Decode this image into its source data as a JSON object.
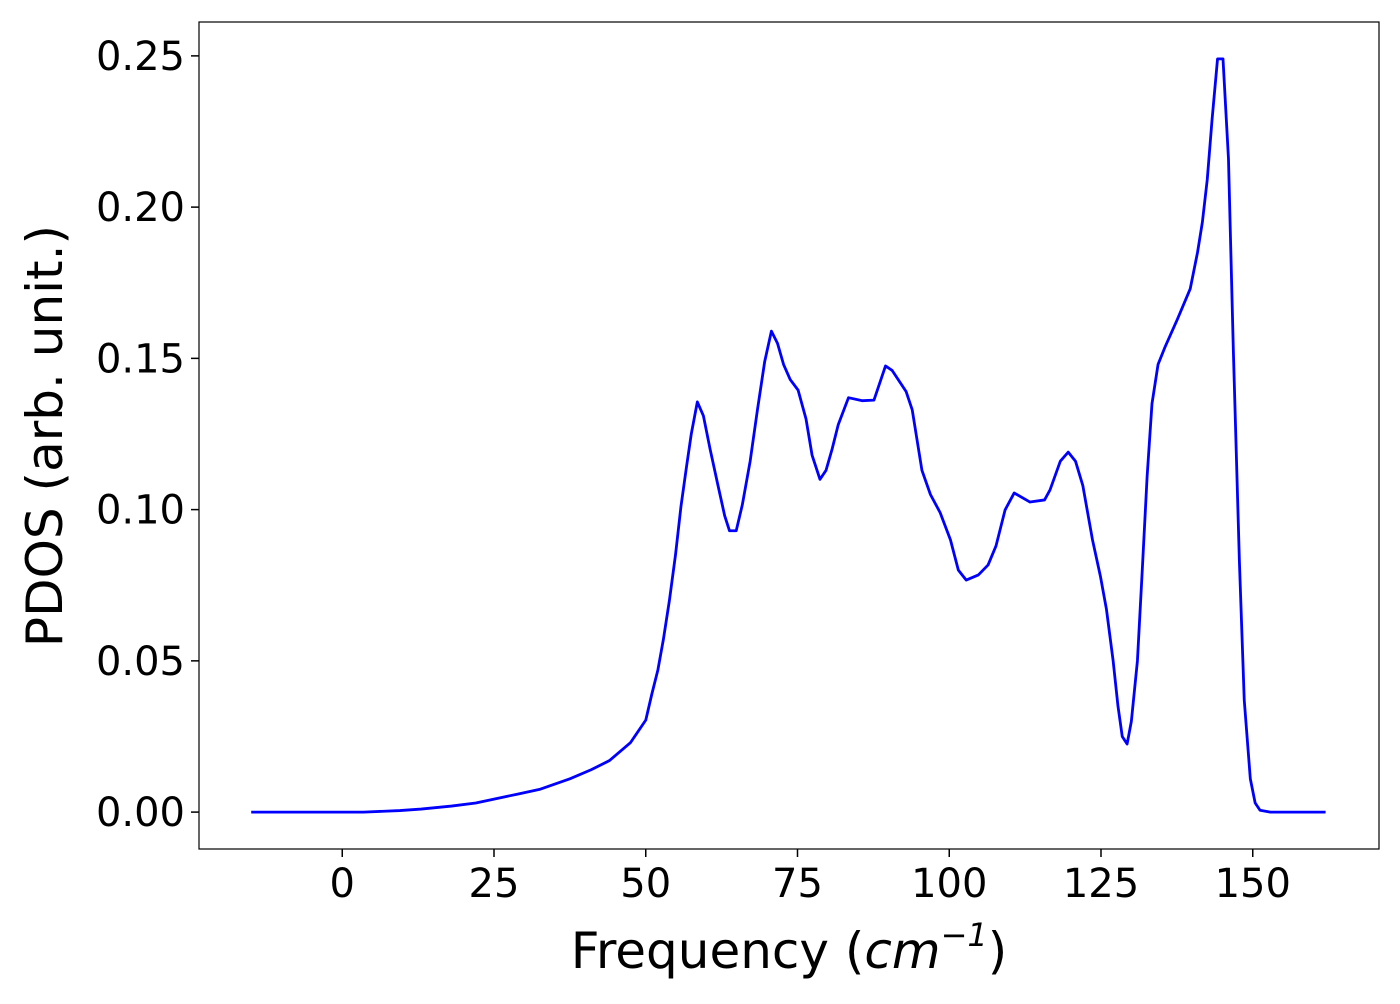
{
  "chart_data": {
    "type": "line",
    "xlabel": [
      "Frequency (",
      "cm",
      "−1",
      ")"
    ],
    "ylabel": "PDOS (arb. unit.)",
    "x": [
      -15,
      0,
      3.5,
      9.5,
      13,
      18,
      22,
      25,
      29,
      32.5,
      37.5,
      41,
      44,
      47.5,
      50,
      51,
      52,
      52.9,
      53.9,
      54.9,
      55.8,
      56.7,
      57.5,
      58.5,
      59.5,
      60.6,
      61.9,
      63,
      63.8,
      64.9,
      65.9,
      67.2,
      68.4,
      69.6,
      70.7,
      71.7,
      72.7,
      73.8,
      75.1,
      76.4,
      77.4,
      78.7,
      79.7,
      80.7,
      81.7,
      83.4,
      85.7,
      87.6,
      89.5,
      90.6,
      92.9,
      93.9,
      95.5,
      96.9,
      98.5,
      100.2,
      101.5,
      102.8,
      104.8,
      106.4,
      107.7,
      109.2,
      110.7,
      113.3,
      115.7,
      116.6,
      118.3,
      119.6,
      120.8,
      122,
      123.6,
      124.9,
      125.9,
      127,
      127.8,
      128.5,
      129.3,
      130,
      131,
      131.8,
      132.6,
      133.4,
      134.4,
      135.6,
      137.6,
      139.7,
      140.9,
      141.7,
      142.5,
      143.3,
      144.2,
      145.1,
      146,
      146.8,
      147.8,
      148.6,
      149.6,
      150.4,
      151.2,
      152.9,
      162
    ],
    "series": [
      {
        "name": "PDOS",
        "color": "#0000ff",
        "values": [
          0,
          0,
          0,
          0.0005,
          0.001,
          0.002,
          0.003,
          0.0043,
          0.006,
          0.0075,
          0.011,
          0.014,
          0.017,
          0.023,
          0.0304,
          0.039,
          0.047,
          0.057,
          0.07,
          0.085,
          0.101,
          0.114,
          0.125,
          0.1356,
          0.131,
          0.12,
          0.108,
          0.098,
          0.093,
          0.093,
          0.1015,
          0.116,
          0.133,
          0.149,
          0.159,
          0.155,
          0.148,
          0.143,
          0.1395,
          0.13,
          0.118,
          0.11,
          0.113,
          0.12,
          0.128,
          0.137,
          0.136,
          0.1362,
          0.1475,
          0.146,
          0.139,
          0.133,
          0.113,
          0.105,
          0.099,
          0.09,
          0.08,
          0.0767,
          0.0784,
          0.0817,
          0.088,
          0.0999,
          0.1055,
          0.1025,
          0.1032,
          0.1065,
          0.116,
          0.119,
          0.116,
          0.108,
          0.09,
          0.078,
          0.067,
          0.05,
          0.035,
          0.025,
          0.0225,
          0.03,
          0.05,
          0.08,
          0.111,
          0.135,
          0.148,
          0.154,
          0.163,
          0.173,
          0.185,
          0.195,
          0.209,
          0.229,
          0.249,
          0.249,
          0.216,
          0.153,
          0.083,
          0.037,
          0.011,
          0.003,
          0.0006,
          0,
          0
        ]
      }
    ],
    "xlim": [
      -23.6,
      170.8
    ],
    "ylim": [
      -0.0122,
      0.2612
    ],
    "xticks": [
      0,
      25,
      50,
      75,
      100,
      125,
      150
    ],
    "yticks": [
      {
        "value": 0,
        "label": "0.00"
      },
      {
        "value": 0.05,
        "label": "0.05"
      },
      {
        "value": 0.1,
        "label": "0.10"
      },
      {
        "value": 0.15,
        "label": "0.15"
      },
      {
        "value": 0.2,
        "label": "0.20"
      },
      {
        "value": 0.25,
        "label": "0.25"
      }
    ],
    "grid": false
  }
}
